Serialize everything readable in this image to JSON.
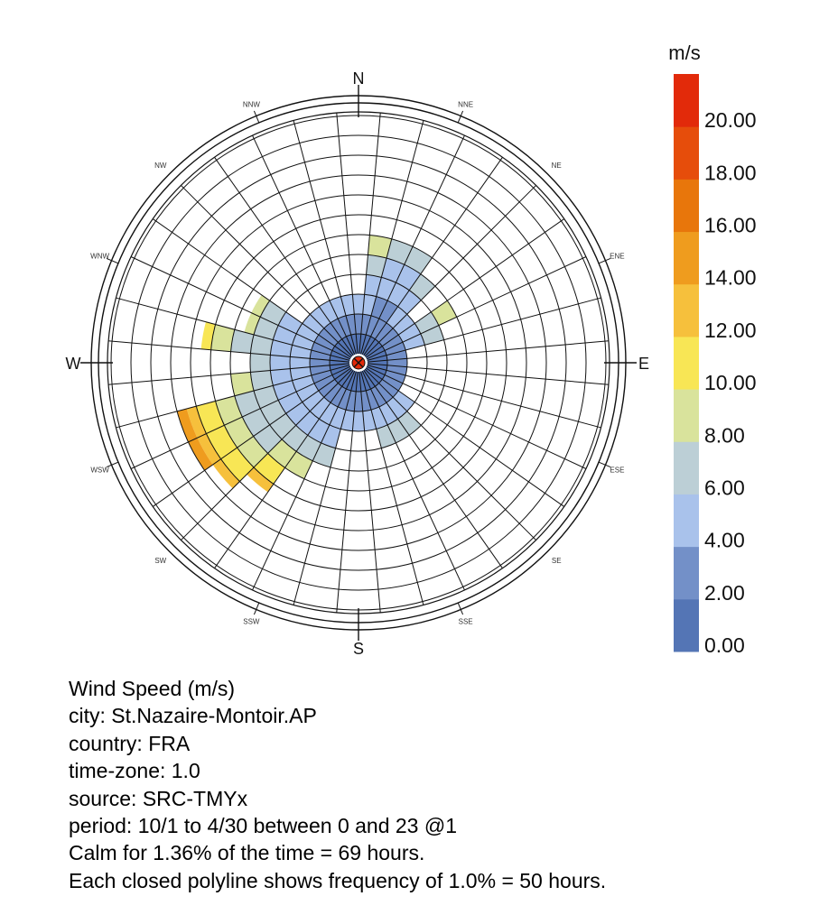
{
  "chart_data": {
    "type": "wind-rose (polar stacked bar)",
    "title": "Wind Speed (m/s)",
    "legend": {
      "unit_label": "m/s",
      "placement": "right",
      "tick_labels": [
        "0.00",
        "2.00",
        "4.00",
        "6.00",
        "8.00",
        "10.00",
        "12.00",
        "14.00",
        "16.00",
        "18.00",
        "20.00"
      ],
      "bands": [
        {
          "from": 0,
          "to": 2,
          "color": "#5475b5"
        },
        {
          "from": 2,
          "to": 4,
          "color": "#7390c8"
        },
        {
          "from": 4,
          "to": 6,
          "color": "#a9c2eb"
        },
        {
          "from": 6,
          "to": 8,
          "color": "#bccfd6"
        },
        {
          "from": 8,
          "to": 10,
          "color": "#d9e39c"
        },
        {
          "from": 10,
          "to": 12,
          "color": "#f8e655"
        },
        {
          "from": 12,
          "to": 14,
          "color": "#f6c03c"
        },
        {
          "from": 14,
          "to": 16,
          "color": "#ef9c1e"
        },
        {
          "from": 16,
          "to": 18,
          "color": "#e8760b"
        },
        {
          "from": 18,
          "to": 20,
          "color": "#e64d0b"
        },
        {
          "from": 20,
          "to": 22,
          "color": "#e22a0a"
        }
      ]
    },
    "compass": {
      "major": [
        "N",
        "E",
        "S",
        "W"
      ],
      "minor": [
        "NNE",
        "NE",
        "ENE",
        "ESE",
        "SE",
        "SSE",
        "SSW",
        "SW",
        "WSW",
        "WNW",
        "NW",
        "NNW"
      ]
    },
    "sectors": 36,
    "frequency_step_percent": 1.0,
    "series": [
      {
        "direction_deg": 0,
        "band_frequencies_percent": [
          1,
          1,
          1
        ]
      },
      {
        "direction_deg": 10,
        "band_frequencies_percent": [
          1,
          1,
          2,
          1,
          1
        ]
      },
      {
        "direction_deg": 20,
        "band_frequencies_percent": [
          1,
          2,
          2,
          1
        ]
      },
      {
        "direction_deg": 30,
        "band_frequencies_percent": [
          1,
          2,
          2,
          1
        ]
      },
      {
        "direction_deg": 40,
        "band_frequencies_percent": [
          1,
          1,
          2,
          1
        ]
      },
      {
        "direction_deg": 50,
        "band_frequencies_percent": [
          1,
          1,
          1
        ]
      },
      {
        "direction_deg": 60,
        "band_frequencies_percent": [
          1,
          1,
          1,
          1,
          1
        ]
      },
      {
        "direction_deg": 70,
        "band_frequencies_percent": [
          1,
          1,
          1,
          1
        ]
      },
      {
        "direction_deg": 80,
        "band_frequencies_percent": [
          1,
          1
        ]
      },
      {
        "direction_deg": 90,
        "band_frequencies_percent": [
          1,
          1
        ]
      },
      {
        "direction_deg": 100,
        "band_frequencies_percent": [
          1,
          1
        ]
      },
      {
        "direction_deg": 110,
        "band_frequencies_percent": [
          1,
          1
        ]
      },
      {
        "direction_deg": 120,
        "band_frequencies_percent": [
          1,
          1
        ]
      },
      {
        "direction_deg": 130,
        "band_frequencies_percent": [
          1,
          1,
          1
        ]
      },
      {
        "direction_deg": 140,
        "band_frequencies_percent": [
          1,
          1,
          1,
          1
        ]
      },
      {
        "direction_deg": 150,
        "band_frequencies_percent": [
          1,
          1,
          1,
          1
        ]
      },
      {
        "direction_deg": 160,
        "band_frequencies_percent": [
          1,
          1,
          1,
          1
        ]
      },
      {
        "direction_deg": 170,
        "band_frequencies_percent": [
          1,
          1,
          1
        ]
      },
      {
        "direction_deg": 180,
        "band_frequencies_percent": [
          1,
          1,
          1
        ]
      },
      {
        "direction_deg": 190,
        "band_frequencies_percent": [
          1,
          1,
          1
        ]
      },
      {
        "direction_deg": 200,
        "band_frequencies_percent": [
          1,
          1,
          2,
          1
        ]
      },
      {
        "direction_deg": 210,
        "band_frequencies_percent": [
          1,
          1,
          2,
          1,
          1
        ]
      },
      {
        "direction_deg": 220,
        "band_frequencies_percent": [
          1,
          1,
          2,
          1,
          1,
          1,
          0.5
        ]
      },
      {
        "direction_deg": 230,
        "band_frequencies_percent": [
          1,
          1,
          2,
          2,
          1,
          1,
          0.5
        ]
      },
      {
        "direction_deg": 240,
        "band_frequencies_percent": [
          1,
          1,
          2,
          2,
          1,
          1,
          0.5,
          0.5
        ]
      },
      {
        "direction_deg": 250,
        "band_frequencies_percent": [
          1,
          1,
          2,
          2,
          1,
          1,
          0.5,
          0.5
        ]
      },
      {
        "direction_deg": 260,
        "band_frequencies_percent": [
          1,
          1,
          2,
          1,
          1
        ]
      },
      {
        "direction_deg": 270,
        "band_frequencies_percent": [
          1,
          1,
          2,
          1
        ]
      },
      {
        "direction_deg": 280,
        "band_frequencies_percent": [
          1,
          1,
          2,
          2,
          1,
          0.5
        ]
      },
      {
        "direction_deg": 290,
        "band_frequencies_percent": [
          1,
          1,
          2,
          1,
          0.5
        ]
      },
      {
        "direction_deg": 300,
        "band_frequencies_percent": [
          1,
          1,
          2,
          1,
          0.5
        ]
      },
      {
        "direction_deg": 310,
        "band_frequencies_percent": [
          1,
          1,
          1
        ]
      },
      {
        "direction_deg": 320,
        "band_frequencies_percent": [
          1,
          1,
          1
        ]
      },
      {
        "direction_deg": 330,
        "band_frequencies_percent": [
          1,
          1,
          1
        ]
      },
      {
        "direction_deg": 340,
        "band_frequencies_percent": [
          1,
          1,
          1
        ]
      },
      {
        "direction_deg": 350,
        "band_frequencies_percent": [
          1,
          1,
          1
        ]
      }
    ]
  },
  "info": {
    "title": "Wind Speed (m/s)",
    "city": "city: St.Nazaire-Montoir.AP",
    "country": "country: FRA",
    "timezone": "time-zone: 1.0",
    "source": "source: SRC-TMYx",
    "period": "period: 10/1 to 4/30 between 0 and 23 @1",
    "calm": "Calm for 1.36% of the time = 69 hours.",
    "polyline": "Each closed polyline shows frequency of 1.0% = 50 hours."
  }
}
